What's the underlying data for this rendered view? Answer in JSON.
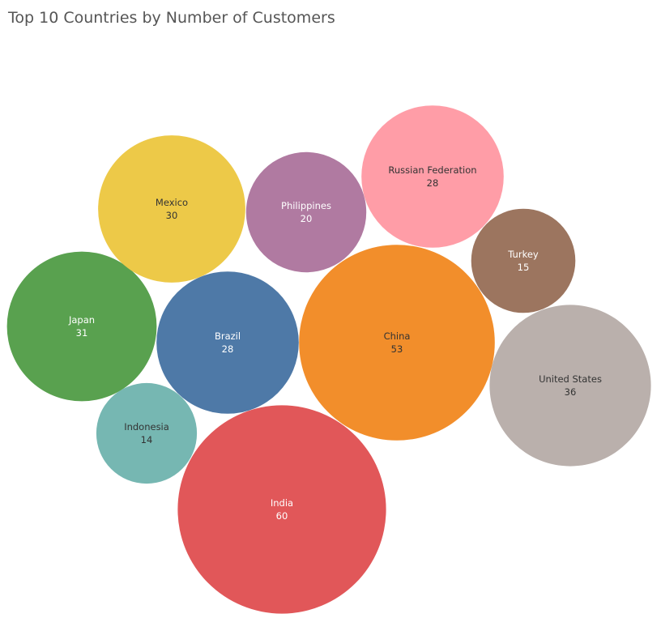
{
  "chart_data": {
    "type": "bubble",
    "title": "Top 10 Countries by Number of Customers",
    "series": [
      {
        "name": "India",
        "value": 60,
        "color": "#e15759",
        "text_color": "#ffffff"
      },
      {
        "name": "China",
        "value": 53,
        "color": "#f28e2b",
        "text_color": "#333333"
      },
      {
        "name": "United States",
        "value": 36,
        "color": "#bab0ac",
        "text_color": "#333333"
      },
      {
        "name": "Japan",
        "value": 31,
        "color": "#59a14f",
        "text_color": "#ffffff"
      },
      {
        "name": "Mexico",
        "value": 30,
        "color": "#edc948",
        "text_color": "#333333"
      },
      {
        "name": "Brazil",
        "value": 28,
        "color": "#4e79a7",
        "text_color": "#ffffff"
      },
      {
        "name": "Russian Federation",
        "value": 28,
        "color": "#ff9da7",
        "text_color": "#333333"
      },
      {
        "name": "Philippines",
        "value": 20,
        "color": "#b07aa1",
        "text_color": "#ffffff"
      },
      {
        "name": "Turkey",
        "value": 15,
        "color": "#9c755f",
        "text_color": "#ffffff"
      },
      {
        "name": "Indonesia",
        "value": 14,
        "color": "#76b7b2",
        "text_color": "#333333"
      }
    ]
  }
}
